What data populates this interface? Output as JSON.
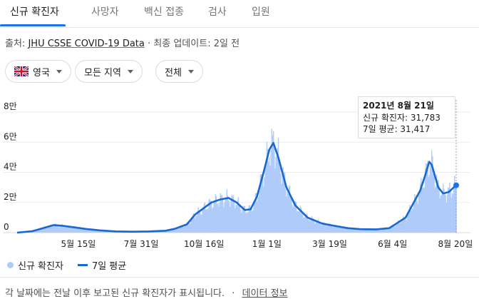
{
  "tabs": [
    {
      "label": "신규 확진자",
      "active": true
    },
    {
      "label": "사망자",
      "active": false
    },
    {
      "label": "백신 접종",
      "active": false
    },
    {
      "label": "검사",
      "active": false
    },
    {
      "label": "입원",
      "active": false
    }
  ],
  "source": {
    "prefix": "출처:",
    "link": "JHU CSSE COVID-19 Data",
    "separator": "·",
    "updated": "최종 업데이트: 2일 전"
  },
  "filters": {
    "country": "영국",
    "country_flag": "uk-flag-icon",
    "region": "모든 지역",
    "period": "전체"
  },
  "tooltip": {
    "date": "2021년 8월 21일",
    "cases_line": "신규 확진자: 31,783",
    "avg_line": "7일 평균: 31,417"
  },
  "legend": {
    "daily": "신규 확진자",
    "avg": "7일 평균"
  },
  "footer": {
    "note": "각 날짜에는 전날 이후 보고된 신규 확진자가 표시됩니다.",
    "separator": "·",
    "link": "데이터 정보"
  },
  "colors": {
    "bars": "#aecbfa",
    "avg_line": "#1967d2",
    "accent": "#1a73e8"
  },
  "chart_data": {
    "type": "area",
    "title": "",
    "xlabel": "",
    "ylabel": "",
    "ylim": [
      0,
      80000
    ],
    "y_ticks": [
      {
        "value": 0,
        "label": "0"
      },
      {
        "value": 20000,
        "label": "2만"
      },
      {
        "value": 40000,
        "label": "4만"
      },
      {
        "value": 60000,
        "label": "6만"
      },
      {
        "value": 80000,
        "label": "8만"
      }
    ],
    "x_ticks": [
      {
        "date": "2020-05-15",
        "label": "5월 15일"
      },
      {
        "date": "2020-07-31",
        "label": "7월 31일"
      },
      {
        "date": "2020-10-16",
        "label": "10월 16일"
      },
      {
        "date": "2021-01-01",
        "label": "1월 1일"
      },
      {
        "date": "2021-03-19",
        "label": "3월 19일"
      },
      {
        "date": "2021-06-04",
        "label": "6월 4일"
      },
      {
        "date": "2021-08-20",
        "label": "8월 20일"
      }
    ],
    "x_range": [
      "2020-03-01",
      "2021-08-21"
    ],
    "highlight": {
      "date": "2021-08-21",
      "cases": 31783,
      "avg": 31417
    },
    "series": [
      {
        "name": "7일 평균",
        "points": [
          [
            "2020-03-01",
            0
          ],
          [
            "2020-03-20",
            1000
          ],
          [
            "2020-04-05",
            3500
          ],
          [
            "2020-04-15",
            5000
          ],
          [
            "2020-04-25",
            4600
          ],
          [
            "2020-05-10",
            3500
          ],
          [
            "2020-05-25",
            2400
          ],
          [
            "2020-06-10",
            1500
          ],
          [
            "2020-06-30",
            800
          ],
          [
            "2020-07-20",
            600
          ],
          [
            "2020-08-10",
            800
          ],
          [
            "2020-08-30",
            1300
          ],
          [
            "2020-09-10",
            2500
          ],
          [
            "2020-09-25",
            5500
          ],
          [
            "2020-10-05",
            12000
          ],
          [
            "2020-10-15",
            16000
          ],
          [
            "2020-10-25",
            20000
          ],
          [
            "2020-11-05",
            22000
          ],
          [
            "2020-11-15",
            23000
          ],
          [
            "2020-11-25",
            20000
          ],
          [
            "2020-12-05",
            15000
          ],
          [
            "2020-12-12",
            15500
          ],
          [
            "2020-12-20",
            24000
          ],
          [
            "2020-12-28",
            40000
          ],
          [
            "2021-01-04",
            55000
          ],
          [
            "2021-01-09",
            59500
          ],
          [
            "2021-01-15",
            50000
          ],
          [
            "2021-01-25",
            30000
          ],
          [
            "2021-02-05",
            18000
          ],
          [
            "2021-02-20",
            10000
          ],
          [
            "2021-03-10",
            6000
          ],
          [
            "2021-03-25",
            4500
          ],
          [
            "2021-04-10",
            3000
          ],
          [
            "2021-04-25",
            2300
          ],
          [
            "2021-05-15",
            2200
          ],
          [
            "2021-05-31",
            3000
          ],
          [
            "2021-06-10",
            6500
          ],
          [
            "2021-06-20",
            10000
          ],
          [
            "2021-06-30",
            20000
          ],
          [
            "2021-07-08",
            28000
          ],
          [
            "2021-07-14",
            38000
          ],
          [
            "2021-07-19",
            47000
          ],
          [
            "2021-07-22",
            45000
          ],
          [
            "2021-07-30",
            30000
          ],
          [
            "2021-08-05",
            26000
          ],
          [
            "2021-08-12",
            27000
          ],
          [
            "2021-08-18",
            30000
          ],
          [
            "2021-08-21",
            31417
          ]
        ]
      }
    ]
  }
}
